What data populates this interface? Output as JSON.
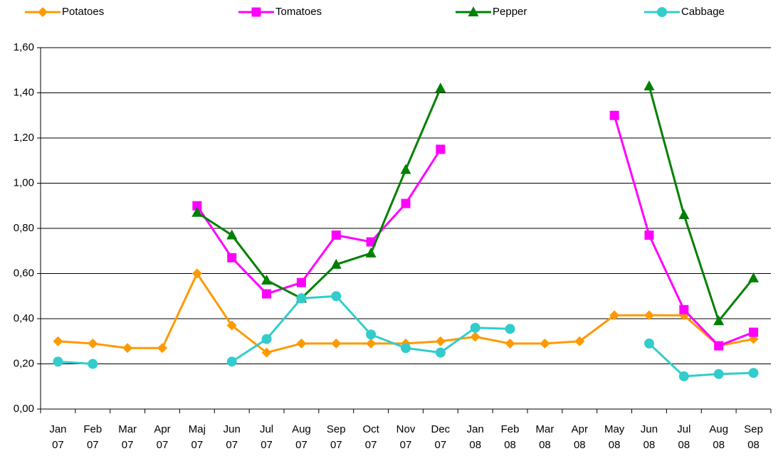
{
  "chart_data": {
    "type": "line",
    "categories": [
      "Jan 07",
      "Feb 07",
      "Mar 07",
      "Apr 07",
      "Maj 07",
      "Jun 07",
      "Jul 07",
      "Aug 07",
      "Sep 07",
      "Oct 07",
      "Nov 07",
      "Dec 07",
      "Jan 08",
      "Feb 08",
      "Mar 08",
      "Apr 08",
      "May 08",
      "Jun 08",
      "Jul 08",
      "Aug 08",
      "Sep 08"
    ],
    "series": [
      {
        "name": "Potatoes",
        "color": "#ff9900",
        "marker": "diamond",
        "values": [
          0.3,
          0.29,
          0.27,
          0.27,
          0.6,
          0.37,
          0.25,
          0.29,
          0.29,
          0.29,
          0.29,
          0.3,
          0.32,
          0.29,
          0.29,
          0.3,
          0.415,
          0.415,
          0.415,
          0.28,
          0.31
        ]
      },
      {
        "name": "Tomatoes",
        "color": "#ff00ff",
        "marker": "square",
        "values": [
          null,
          null,
          null,
          null,
          0.9,
          0.67,
          0.51,
          0.56,
          0.77,
          0.74,
          0.91,
          1.15,
          null,
          null,
          null,
          null,
          1.3,
          0.77,
          0.44,
          0.28,
          0.34
        ]
      },
      {
        "name": "Pepper",
        "color": "#008000",
        "marker": "triangle",
        "values": [
          null,
          null,
          null,
          null,
          0.87,
          0.77,
          0.57,
          0.49,
          0.64,
          0.69,
          1.06,
          1.42,
          null,
          null,
          null,
          null,
          null,
          1.43,
          0.86,
          0.39,
          0.58
        ]
      },
      {
        "name": "Cabbage",
        "color": "#33cccc",
        "marker": "circle",
        "values": [
          0.21,
          0.2,
          null,
          null,
          null,
          0.21,
          0.31,
          0.49,
          0.5,
          0.33,
          0.27,
          0.25,
          0.36,
          0.355,
          null,
          null,
          null,
          0.29,
          0.145,
          0.155,
          0.16
        ]
      }
    ],
    "ylim": [
      0,
      1.6
    ],
    "yticks": [
      {
        "value": 0,
        "label": "0,00"
      },
      {
        "value": 0.2,
        "label": "0,20"
      },
      {
        "value": 0.4,
        "label": "0,40"
      },
      {
        "value": 0.6,
        "label": "0,60"
      },
      {
        "value": 0.8,
        "label": "0,80"
      },
      {
        "value": 1.0,
        "label": "1,00"
      },
      {
        "value": 1.2,
        "label": "1,20"
      },
      {
        "value": 1.4,
        "label": "1,40"
      },
      {
        "value": 1.6,
        "label": "1,60"
      }
    ],
    "grid": true,
    "legend": "top"
  }
}
